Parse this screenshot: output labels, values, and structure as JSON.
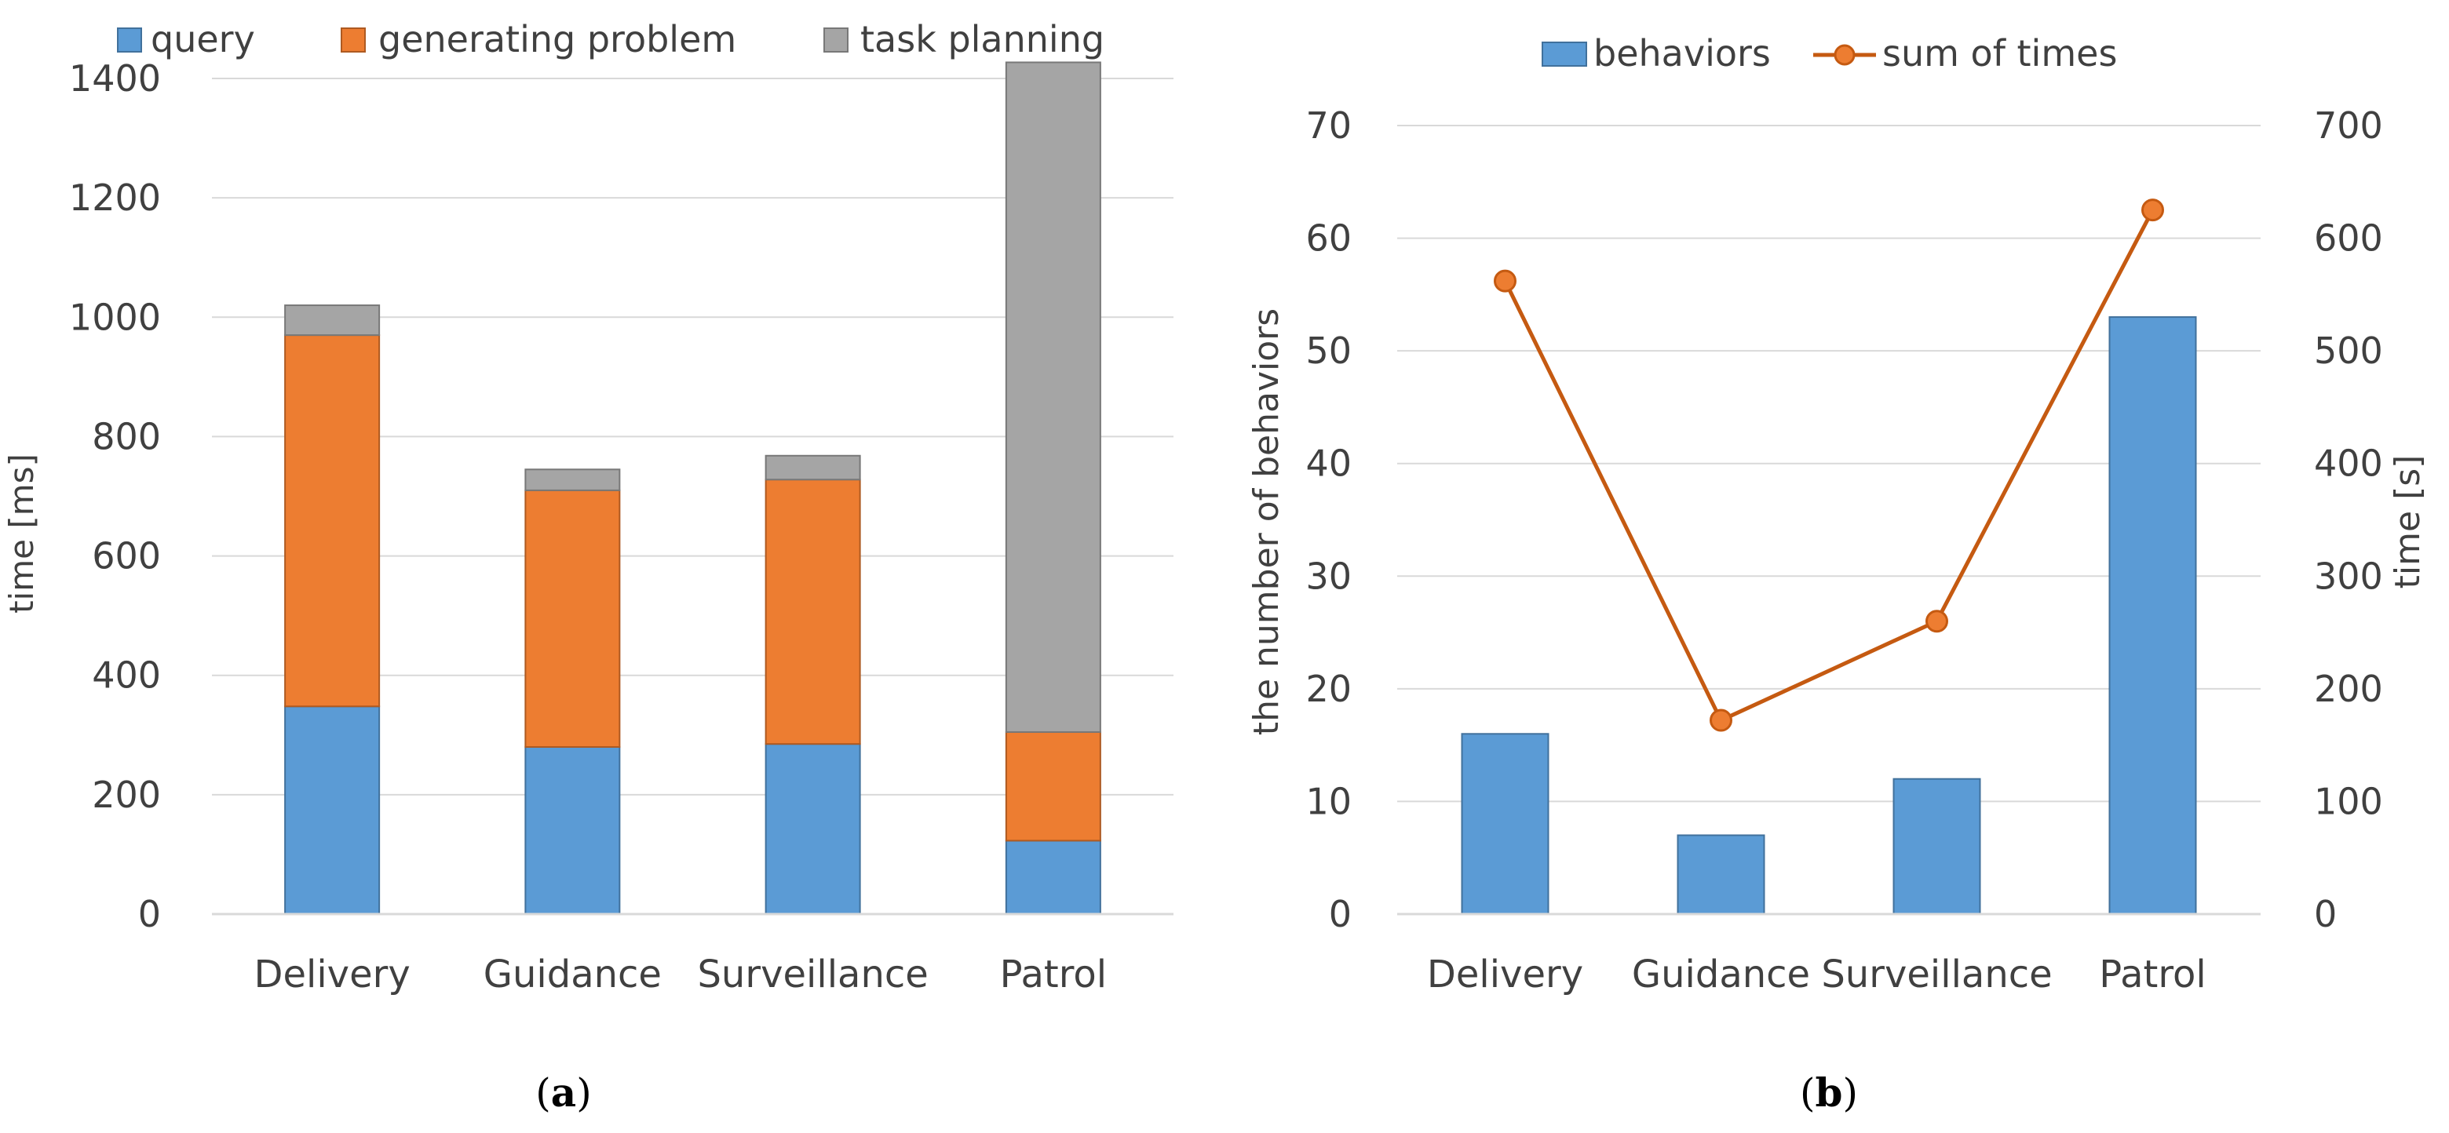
{
  "chart_data": [
    {
      "id": "a",
      "type": "bar",
      "stacked": true,
      "caption_label": "a",
      "categories": [
        "Delivery",
        "Guidance",
        "Surveillance",
        "Patrol"
      ],
      "series": [
        {
          "name": "query",
          "color": "#5b9bd5",
          "values": [
            348,
            280,
            285,
            123
          ]
        },
        {
          "name": "generating problem",
          "color": "#ed7d31",
          "values": [
            622,
            430,
            443,
            182
          ]
        },
        {
          "name": "task planning",
          "color": "#a5a5a5",
          "values": [
            50,
            35,
            40,
            1122
          ]
        }
      ],
      "xlabel": "",
      "ylabel": "time [ms]",
      "ylim": [
        0,
        1400
      ],
      "yticks": [
        "0",
        "200",
        "400",
        "600",
        "800",
        "1000",
        "1200",
        "1400"
      ],
      "grid": true,
      "legend": "top"
    },
    {
      "id": "b",
      "type": "bar+line",
      "caption_label": "b",
      "categories": [
        "Delivery",
        "Guidance",
        "Surveillance",
        "Patrol"
      ],
      "series": [
        {
          "name": "behaviors",
          "type": "bar",
          "axis": "left",
          "color": "#5b9bd5",
          "values": [
            16,
            7,
            12,
            53
          ]
        },
        {
          "name": "sum of times",
          "type": "line",
          "axis": "right",
          "color": "#c55a11",
          "values": [
            562,
            172,
            260,
            625
          ]
        }
      ],
      "ylabel": "the number of behaviors",
      "ylim": [
        0,
        70
      ],
      "yticks": [
        "0",
        "10",
        "20",
        "30",
        "40",
        "50",
        "60",
        "70"
      ],
      "y2label": "time [s]",
      "y2lim": [
        0,
        700
      ],
      "y2ticks": [
        "0",
        "100",
        "200",
        "300",
        "400",
        "500",
        "600",
        "700"
      ],
      "grid": true,
      "legend": "top"
    }
  ]
}
